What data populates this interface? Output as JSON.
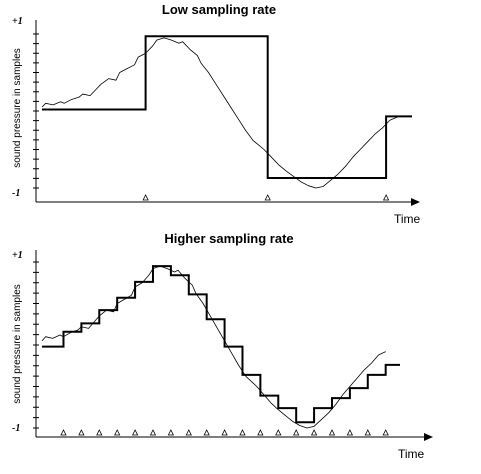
{
  "chart_data": [
    {
      "type": "line",
      "title": "Low sampling rate",
      "xlabel": "Time",
      "ylabel": "sound pressure in samples",
      "y_ticks": [
        "+1",
        "-1"
      ],
      "ylim": [
        -1,
        1
      ],
      "xlim": [
        0,
        1
      ],
      "series": [
        {
          "role": "original-signal",
          "style": "thin",
          "x": [
            0.0,
            0.01,
            0.03,
            0.05,
            0.06,
            0.08,
            0.1,
            0.11,
            0.13,
            0.15,
            0.16,
            0.18,
            0.2,
            0.21,
            0.23,
            0.25,
            0.26,
            0.28,
            0.3,
            0.31,
            0.33,
            0.35,
            0.37,
            0.38,
            0.4,
            0.42,
            0.43,
            0.45,
            0.47,
            0.49,
            0.51,
            0.53,
            0.55,
            0.57,
            0.6,
            0.62,
            0.64,
            0.66,
            0.68,
            0.7,
            0.72,
            0.74,
            0.76,
            0.78,
            0.8,
            0.82,
            0.84,
            0.86,
            0.88,
            0.9,
            0.92,
            0.94,
            0.96
          ],
          "y": [
            0.05,
            0.1,
            0.08,
            0.12,
            0.1,
            0.15,
            0.18,
            0.22,
            0.2,
            0.3,
            0.35,
            0.42,
            0.4,
            0.5,
            0.55,
            0.6,
            0.7,
            0.75,
            0.85,
            0.92,
            0.95,
            0.92,
            0.88,
            0.9,
            0.8,
            0.72,
            0.62,
            0.5,
            0.35,
            0.2,
            0.05,
            -0.1,
            -0.25,
            -0.38,
            -0.5,
            -0.6,
            -0.7,
            -0.78,
            -0.85,
            -0.92,
            -0.97,
            -1.0,
            -0.98,
            -0.9,
            -0.82,
            -0.72,
            -0.6,
            -0.5,
            -0.4,
            -0.3,
            -0.22,
            -0.12,
            -0.08
          ]
        },
        {
          "role": "sampled-signal",
          "style": "step",
          "x": [
            0.0,
            0.28,
            0.61,
            0.93,
            1.0
          ],
          "y": [
            0.02,
            0.97,
            -0.87,
            -0.07,
            -0.07
          ]
        }
      ],
      "sample_marks": [
        0.28,
        0.61,
        0.93
      ]
    },
    {
      "type": "line",
      "title": "Higher sampling rate",
      "xlabel": "Time",
      "ylabel": "sound pressure in samples",
      "y_ticks": [
        "+1",
        "-1"
      ],
      "ylim": [
        -1,
        1
      ],
      "xlim": [
        0,
        1
      ],
      "series": [
        {
          "role": "original-signal",
          "style": "thin",
          "x": [
            0.0,
            0.01,
            0.03,
            0.05,
            0.06,
            0.08,
            0.1,
            0.11,
            0.13,
            0.15,
            0.16,
            0.18,
            0.2,
            0.21,
            0.23,
            0.25,
            0.26,
            0.28,
            0.3,
            0.31,
            0.33,
            0.35,
            0.37,
            0.38,
            0.4,
            0.42,
            0.43,
            0.45,
            0.47,
            0.49,
            0.51,
            0.53,
            0.55,
            0.57,
            0.6,
            0.62,
            0.64,
            0.66,
            0.68,
            0.7,
            0.72,
            0.74,
            0.76,
            0.78,
            0.8,
            0.82,
            0.84,
            0.86,
            0.88,
            0.9,
            0.92,
            0.94,
            0.96
          ],
          "y": [
            0.05,
            0.1,
            0.08,
            0.12,
            0.1,
            0.15,
            0.18,
            0.22,
            0.2,
            0.3,
            0.35,
            0.42,
            0.4,
            0.5,
            0.55,
            0.6,
            0.7,
            0.75,
            0.85,
            0.92,
            0.95,
            0.92,
            0.88,
            0.9,
            0.8,
            0.72,
            0.62,
            0.5,
            0.35,
            0.2,
            0.05,
            -0.1,
            -0.25,
            -0.38,
            -0.5,
            -0.6,
            -0.7,
            -0.78,
            -0.85,
            -0.92,
            -0.97,
            -1.0,
            -0.98,
            -0.9,
            -0.82,
            -0.72,
            -0.6,
            -0.5,
            -0.4,
            -0.3,
            -0.22,
            -0.12,
            -0.08
          ]
        },
        {
          "role": "sampled-signal",
          "style": "step",
          "x": [
            0.0,
            0.06,
            0.11,
            0.16,
            0.21,
            0.26,
            0.31,
            0.36,
            0.41,
            0.46,
            0.51,
            0.56,
            0.61,
            0.66,
            0.71,
            0.76,
            0.81,
            0.86,
            0.91,
            0.96,
            1.0
          ],
          "y": [
            -0.02,
            0.16,
            0.26,
            0.42,
            0.57,
            0.76,
            0.95,
            0.84,
            0.61,
            0.31,
            -0.02,
            -0.36,
            -0.61,
            -0.76,
            -0.93,
            -0.76,
            -0.64,
            -0.52,
            -0.36,
            -0.24,
            -0.24
          ]
        }
      ],
      "sample_marks": [
        0.06,
        0.11,
        0.16,
        0.21,
        0.26,
        0.31,
        0.36,
        0.41,
        0.46,
        0.51,
        0.56,
        0.61,
        0.66,
        0.71,
        0.76,
        0.81,
        0.86,
        0.91,
        0.96
      ]
    }
  ]
}
